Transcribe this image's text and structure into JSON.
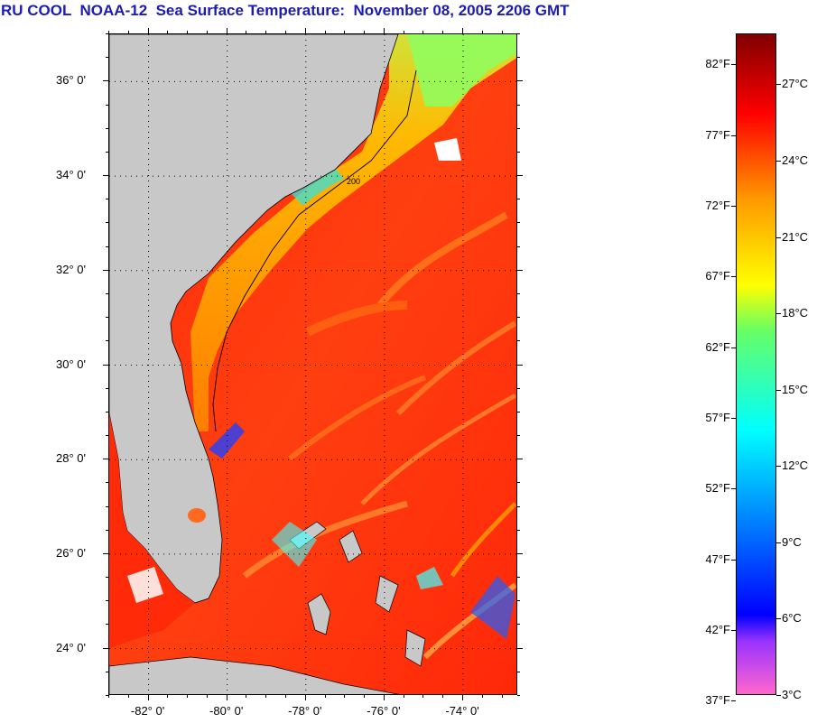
{
  "title": "RU COOL  NOAA-12  Sea Surface Temperature:  November 08, 2005 2206 GMT",
  "map": {
    "lat_labels": [
      "36° 0'",
      "34° 0'",
      "32° 0'",
      "30° 0'",
      "28° 0'",
      "26° 0'",
      "24° 0'"
    ],
    "lat_values": [
      36,
      34,
      32,
      30,
      28,
      26,
      24
    ],
    "lon_labels": [
      "-82° 0'",
      "-80° 0'",
      "-78° 0'",
      "-76° 0'",
      "-74° 0'"
    ],
    "lon_values": [
      -82,
      -80,
      -78,
      -76,
      -74
    ],
    "lat_range": [
      23,
      37
    ],
    "lon_range": [
      -83,
      -72.6
    ],
    "contour_label": "200"
  },
  "colorbar": {
    "fahrenheit_labels": [
      "82°F",
      "77°F",
      "72°F",
      "67°F",
      "62°F",
      "57°F",
      "52°F",
      "47°F",
      "42°F",
      "37°F"
    ],
    "fahrenheit_values": [
      82,
      77,
      72,
      67,
      62,
      57,
      52,
      47,
      42,
      37
    ],
    "celsius_labels": [
      "27°C",
      "24°C",
      "21°C",
      "18°C",
      "15°C",
      "12°C",
      "9°C",
      "6°C",
      "3°C"
    ],
    "celsius_values": [
      27,
      24,
      21,
      18,
      15,
      12,
      9,
      6,
      3
    ],
    "range_c": [
      3,
      29
    ],
    "colors": {
      "min": "#ff66cc",
      "violet": "#9933ff",
      "blue": "#0000ff",
      "cyan": "#00ffff",
      "green": "#66ff66",
      "yellow": "#ffff00",
      "orange": "#ff9900",
      "red": "#ff0000",
      "max": "#800000"
    }
  },
  "colors": {
    "land": "#c8c8c8",
    "ocean": "#ff3a10",
    "title": "#1c1cb4"
  }
}
